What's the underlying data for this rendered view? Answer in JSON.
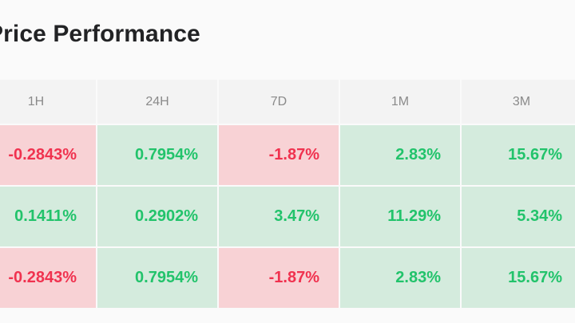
{
  "title": "Price Performance",
  "headers": [
    "1H",
    "24H",
    "7D",
    "1M",
    "3M"
  ],
  "rows": [
    {
      "cells": [
        {
          "value": "-0.2843%",
          "trend": "negative"
        },
        {
          "value": "0.7954%",
          "trend": "positive"
        },
        {
          "value": "-1.87%",
          "trend": "negative"
        },
        {
          "value": "2.83%",
          "trend": "positive"
        },
        {
          "value": "15.67%",
          "trend": "positive"
        }
      ]
    },
    {
      "cells": [
        {
          "value": "0.1411%",
          "trend": "positive"
        },
        {
          "value": "0.2902%",
          "trend": "positive"
        },
        {
          "value": "3.47%",
          "trend": "positive"
        },
        {
          "value": "11.29%",
          "trend": "positive"
        },
        {
          "value": "5.34%",
          "trend": "positive"
        }
      ]
    },
    {
      "cells": [
        {
          "value": "-0.2843%",
          "trend": "negative"
        },
        {
          "value": "0.7954%",
          "trend": "positive"
        },
        {
          "value": "-1.87%",
          "trend": "negative"
        },
        {
          "value": "2.83%",
          "trend": "positive"
        },
        {
          "value": "15.67%",
          "trend": "positive"
        }
      ]
    }
  ],
  "colors": {
    "positive_text": "#22c36b",
    "positive_bg": "#d4ebdd",
    "negative_text": "#f0324f",
    "negative_bg": "#f8d2d5",
    "header_bg": "#f3f3f3",
    "header_text": "#8a8a8a"
  }
}
